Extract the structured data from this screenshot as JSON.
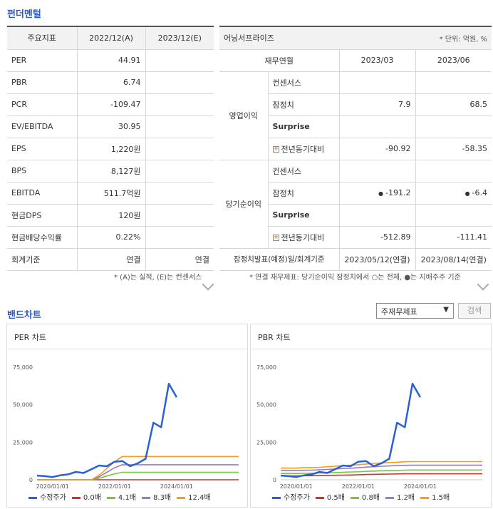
{
  "fundamentals": {
    "title": "펀더멘털",
    "headers": [
      "주요지표",
      "2022/12(A)",
      "2023/12(E)"
    ],
    "rows": [
      {
        "label": "PER",
        "a": "44.91",
        "e": ""
      },
      {
        "label": "PBR",
        "a": "6.74",
        "e": ""
      },
      {
        "label": "PCR",
        "a": "-109.47",
        "e": ""
      },
      {
        "label": "EV/EBITDA",
        "a": "30.95",
        "e": ""
      },
      {
        "label": "EPS",
        "a": "1,220원",
        "e": ""
      },
      {
        "label": "BPS",
        "a": "8,127원",
        "e": ""
      },
      {
        "label": "EBITDA",
        "a": "511.7억원",
        "e": ""
      },
      {
        "label": "현금DPS",
        "a": "120원",
        "e": ""
      },
      {
        "label": "현금배당수익률",
        "a": "0.22%",
        "e": ""
      },
      {
        "label": "회계기준",
        "a": "연결",
        "e": "연결"
      }
    ],
    "note": "* (A)는 실적, (E)는 컨센서스"
  },
  "earnings": {
    "title": "어닝서프라이즈",
    "unit": "* 단위: 억원, %",
    "headers": [
      "재무연월",
      "2023/03",
      "2023/06"
    ],
    "groups": [
      {
        "name": "영업이익",
        "rows": [
          {
            "label": "컨센서스",
            "v1": "",
            "v2": ""
          },
          {
            "label": "잠정치",
            "v1": "7.9",
            "v2": "68.5"
          },
          {
            "label": "Surprise",
            "v1": "",
            "v2": ""
          },
          {
            "label": "전년동기대비",
            "v1": "-90.92",
            "v2": "-58.35"
          }
        ]
      },
      {
        "name": "당기순이익",
        "rows": [
          {
            "label": "컨센서스",
            "v1": "",
            "v2": ""
          },
          {
            "label": "잠정치",
            "v1": "-191.2",
            "v2": "-6.4"
          },
          {
            "label": "Surprise",
            "v1": "",
            "v2": ""
          },
          {
            "label": "전년동기대비",
            "v1": "-512.89",
            "v2": "-111.41"
          }
        ]
      }
    ],
    "release_label": "잠정치발표(예정)일/회계기준",
    "release_1": "2023/05/12(연결)",
    "release_2": "2023/08/14(연결)",
    "note": "* 연결 재무제표: 당기순이익 잠정치에서 ○는 전체, ●는 지배주주 기준"
  },
  "band": {
    "title": "밴드차트",
    "select_value": "주재무제표",
    "search_label": "검색"
  },
  "chart_data": [
    {
      "type": "line",
      "title": "PER 차트",
      "x": [
        "2019/07",
        "2019/10",
        "2020/01",
        "2020/04",
        "2020/07",
        "2020/10",
        "2021/01",
        "2021/04",
        "2021/07",
        "2021/10",
        "2022/01",
        "2022/04",
        "2022/07",
        "2022/10",
        "2023/01",
        "2023/04",
        "2023/07",
        "2023/10",
        "2024/01",
        "2024/04",
        "2024/07",
        "2024/10",
        "2025/01",
        "2025/04",
        "2025/07",
        "2025/10",
        "2026/01"
      ],
      "xticks": [
        "2020/01/01",
        "2022/01/01",
        "2024/01/01"
      ],
      "yticks": [
        "0",
        "25,000",
        "50,000",
        "75,000"
      ],
      "ylim": [
        0,
        75000
      ],
      "series": [
        {
          "name": "수정주가",
          "color": "#2a60d6",
          "values": [
            2800,
            2400,
            1800,
            3000,
            3600,
            5200,
            4500,
            7000,
            9500,
            9000,
            12000,
            12500,
            9000,
            11000,
            14000,
            38000,
            35000,
            64000,
            55000,
            null,
            null,
            null,
            null,
            null,
            null,
            null,
            null
          ]
        },
        {
          "name": "0.0배",
          "color": "#c0392b",
          "values": [
            0,
            0,
            0,
            0,
            0,
            0,
            0,
            0,
            0,
            0,
            0,
            0,
            0,
            0,
            0,
            0,
            0,
            0,
            0,
            0,
            0,
            0,
            0,
            0,
            0,
            0,
            0
          ]
        },
        {
          "name": "4.1배",
          "color": "#7cc242",
          "values": [
            0,
            0,
            0,
            0,
            0,
            0,
            0,
            0,
            1000,
            2500,
            4000,
            5000,
            5000,
            5000,
            5000,
            5000,
            5000,
            5000,
            5000,
            5000,
            5000,
            5000,
            5000,
            5000,
            5000,
            5000,
            5000
          ]
        },
        {
          "name": "8.3배",
          "color": "#9b79c9",
          "values": [
            0,
            0,
            0,
            0,
            0,
            0,
            0,
            0,
            2000,
            5000,
            8000,
            10000,
            10000,
            10000,
            10000,
            10000,
            10000,
            10000,
            10000,
            10000,
            10000,
            10000,
            10000,
            10000,
            10000,
            10000,
            10000
          ]
        },
        {
          "name": "12.4배",
          "color": "#f39c1f",
          "values": [
            0,
            0,
            0,
            0,
            0,
            0,
            0,
            0,
            3000,
            7500,
            12000,
            15500,
            15500,
            15500,
            15500,
            15500,
            15500,
            15500,
            15500,
            15500,
            15500,
            15500,
            15500,
            15500,
            15500,
            15500,
            15500
          ]
        }
      ]
    },
    {
      "type": "line",
      "title": "PBR 차트",
      "x": [
        "2019/07",
        "2019/10",
        "2020/01",
        "2020/04",
        "2020/07",
        "2020/10",
        "2021/01",
        "2021/04",
        "2021/07",
        "2021/10",
        "2022/01",
        "2022/04",
        "2022/07",
        "2022/10",
        "2023/01",
        "2023/04",
        "2023/07",
        "2023/10",
        "2024/01",
        "2024/04",
        "2024/07",
        "2024/10",
        "2025/01",
        "2025/04",
        "2025/07",
        "2025/10",
        "2026/01"
      ],
      "xticks": [
        "2020/01/01",
        "2022/01/01",
        "2024/01/01"
      ],
      "yticks": [
        "0",
        "25,000",
        "50,000",
        "75,000"
      ],
      "ylim": [
        0,
        75000
      ],
      "series": [
        {
          "name": "수정주가",
          "color": "#2a60d6",
          "values": [
            2800,
            2400,
            1800,
            3000,
            3600,
            5200,
            4500,
            7000,
            9500,
            9000,
            12000,
            12500,
            9000,
            11000,
            14000,
            38000,
            35000,
            64000,
            55000,
            null,
            null,
            null,
            null,
            null,
            null,
            null,
            null
          ]
        },
        {
          "name": "0.5배",
          "color": "#c0392b",
          "values": [
            2600,
            2600,
            2600,
            2700,
            2700,
            2800,
            2900,
            3000,
            3100,
            3200,
            3300,
            3500,
            3600,
            3700,
            3800,
            3900,
            4000,
            4000,
            4000,
            4000,
            4000,
            4000,
            4000,
            4000,
            4000,
            4000,
            4000
          ]
        },
        {
          "name": "0.8배",
          "color": "#7cc242",
          "values": [
            4200,
            4200,
            4200,
            4300,
            4300,
            4500,
            4600,
            4800,
            5000,
            5200,
            5300,
            5600,
            5800,
            6000,
            6100,
            6200,
            6400,
            6500,
            6500,
            6500,
            6500,
            6500,
            6500,
            6500,
            6500,
            6500,
            6500
          ]
        },
        {
          "name": "1.2배",
          "color": "#9b79c9",
          "values": [
            6200,
            6200,
            6200,
            6300,
            6400,
            6600,
            6900,
            7200,
            7500,
            7700,
            8000,
            8400,
            8700,
            9000,
            9200,
            9400,
            9600,
            9700,
            9700,
            9700,
            9700,
            9700,
            9700,
            9700,
            9700,
            9700,
            9700
          ]
        },
        {
          "name": "1.5배",
          "color": "#f39c1f",
          "values": [
            7800,
            7800,
            7800,
            8000,
            8100,
            8300,
            8700,
            9000,
            9400,
            9700,
            10000,
            10500,
            10900,
            11200,
            11500,
            11700,
            12000,
            12100,
            12100,
            12100,
            12100,
            12100,
            12100,
            12100,
            12100,
            12100,
            12100
          ]
        }
      ]
    }
  ]
}
